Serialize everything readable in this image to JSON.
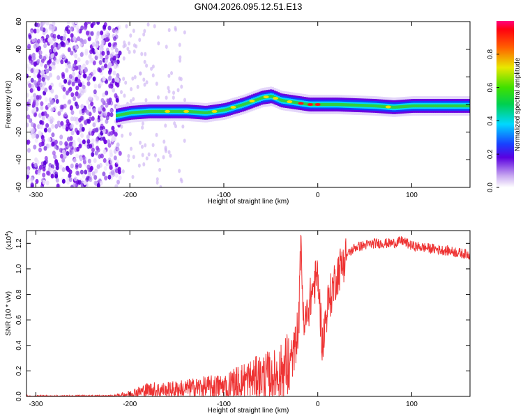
{
  "title": "GN04.2026.095.12.51.E13",
  "chart_data": [
    {
      "type": "heatmap",
      "name": "spectrogram",
      "xlabel": "Height of straight line (km)",
      "ylabel": "Frequency (Hz)",
      "xlim": [
        -310,
        162
      ],
      "ylim": [
        -60,
        60
      ],
      "x_ticks": [
        -300,
        -200,
        -100,
        0,
        100
      ],
      "y_ticks": [
        -60,
        -40,
        -20,
        0,
        20,
        40,
        60
      ],
      "colorbar": {
        "label": "Normalized spectral amplitude",
        "range": [
          0,
          1
        ],
        "ticks": [
          0.0,
          0.2,
          0.4,
          0.6,
          0.8
        ]
      },
      "ridge": {
        "x": [
          -215,
          -200,
          -180,
          -160,
          -140,
          -120,
          -100,
          -80,
          -60,
          -50,
          -40,
          -30,
          -20,
          -10,
          0,
          20,
          60,
          80,
          100,
          162
        ],
        "freq": [
          -8,
          -6,
          -5,
          -5,
          -5,
          -6,
          -4,
          0,
          5,
          6,
          3,
          2,
          1,
          0,
          0,
          0,
          -1,
          -2,
          -1,
          -1
        ]
      }
    },
    {
      "type": "line",
      "name": "snr",
      "xlabel": "Height of straight line (km)",
      "ylabel": "SNR (10 * v/v)",
      "y_scale_label": "(x10",
      "y_scale_exp": "4",
      "xlim": [
        -310,
        162
      ],
      "ylim": [
        0,
        1.3
      ],
      "x_ticks": [
        -300,
        -200,
        -100,
        0,
        100
      ],
      "y_ticks": [
        0.0,
        0.2,
        0.4,
        0.6,
        0.8,
        1.0,
        1.2
      ],
      "color": "#ee3333",
      "series": [
        {
          "name": "SNR",
          "x": [
            -310,
            -250,
            -220,
            -200,
            -180,
            -160,
            -140,
            -120,
            -100,
            -80,
            -60,
            -40,
            -30,
            -25,
            -20,
            -18,
            -15,
            -10,
            -5,
            0,
            5,
            10,
            20,
            30,
            40,
            60,
            80,
            90,
            100,
            120,
            140,
            162
          ],
          "y": [
            0.0,
            0.0,
            0.0,
            0.02,
            0.05,
            0.05,
            0.06,
            0.07,
            0.08,
            0.12,
            0.15,
            0.18,
            0.25,
            0.35,
            0.6,
            1.3,
            0.5,
            0.7,
            0.85,
            0.95,
            0.4,
            0.7,
            0.95,
            1.1,
            1.17,
            1.2,
            1.2,
            1.22,
            1.18,
            1.16,
            1.14,
            1.11
          ]
        }
      ]
    }
  ]
}
